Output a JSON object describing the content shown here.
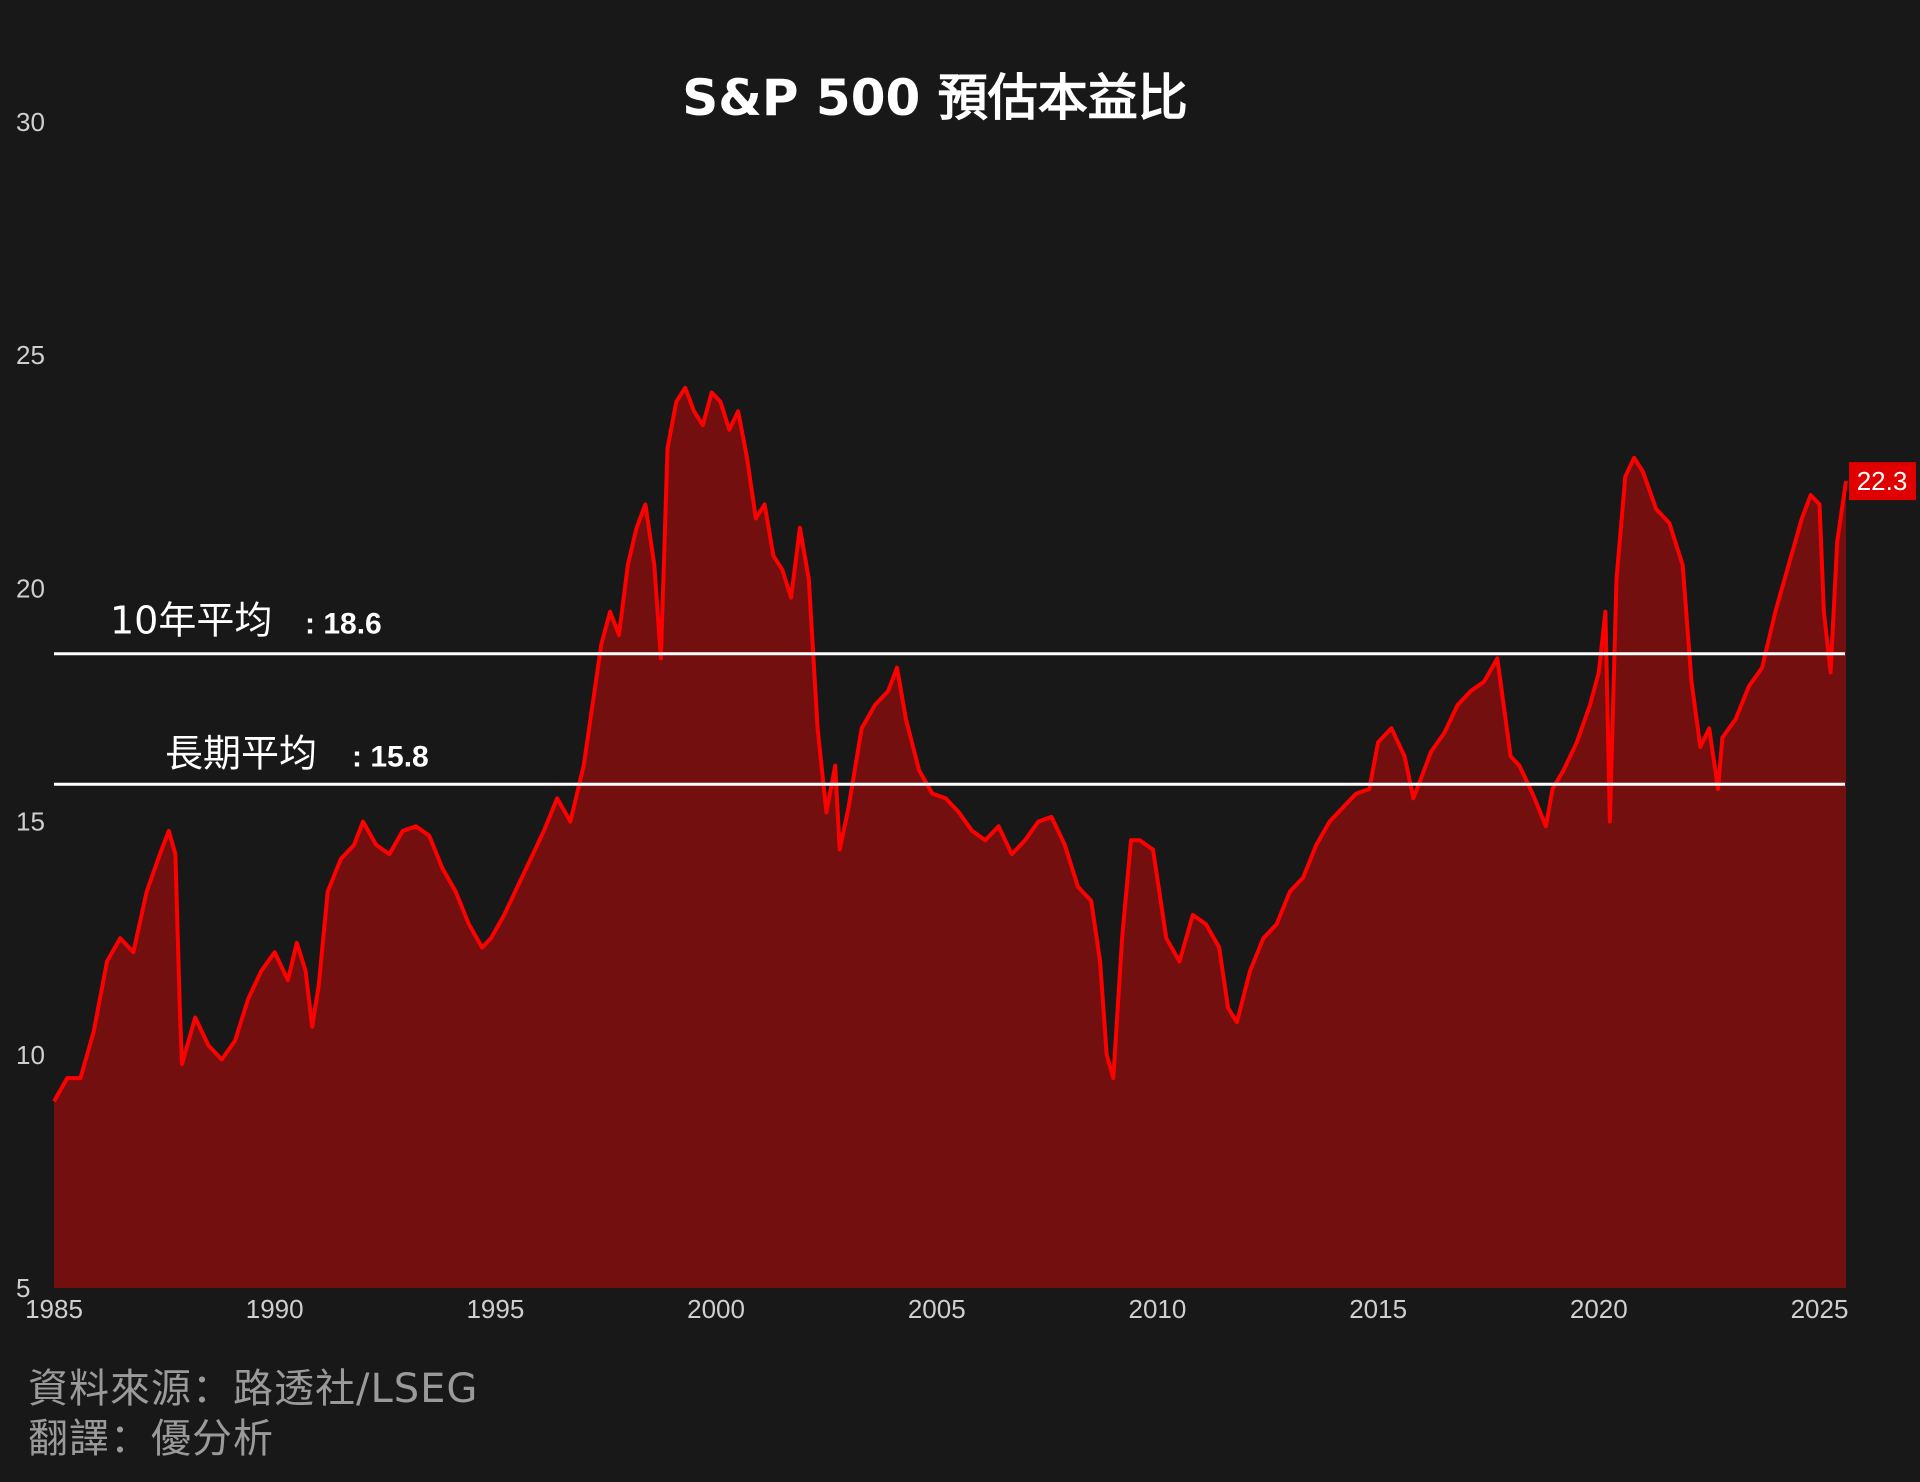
{
  "chart_data": {
    "type": "area",
    "title": "S&P 500 預估本益比",
    "xlabel": "",
    "ylabel": "",
    "ylim": [
      5,
      30
    ],
    "xlim": [
      1985.0,
      2025.6
    ],
    "yticks": [
      "5",
      "10",
      "15",
      "20",
      "25",
      "30"
    ],
    "xticks": [
      "1985",
      "1990",
      "1995",
      "2000",
      "2005",
      "2010",
      "2015",
      "2020",
      "2025"
    ],
    "grid": false,
    "colors": {
      "line": "#ff0000",
      "fill": "#730f0f",
      "reference": "#ffffff",
      "background": "#181818",
      "badge": "#e00000"
    },
    "reference_lines": [
      {
        "label": "10年平均",
        "value_label": ": 18.6",
        "value": 18.6
      },
      {
        "label": "長期平均",
        "value_label": ": 15.8",
        "value": 15.8
      }
    ],
    "last_value_label": "22.3",
    "series": [
      {
        "x": [
          1985.0,
          1985.3,
          1985.6,
          1985.9,
          1986.2,
          1986.5,
          1986.8,
          1987.1,
          1987.4,
          1987.6,
          1987.75,
          1987.85,
          1987.9,
          1988.2,
          1988.5,
          1988.8,
          1989.1,
          1989.4,
          1989.7,
          1990.0,
          1990.3,
          1990.5,
          1990.7,
          1990.85,
          1991.0,
          1991.2,
          1991.5,
          1991.8,
          1992.0,
          1992.3,
          1992.6,
          1992.9,
          1993.2,
          1993.5,
          1993.8,
          1994.1,
          1994.4,
          1994.7,
          1994.9,
          1995.2,
          1995.5,
          1995.8,
          1996.1,
          1996.4,
          1996.7,
          1997.0,
          1997.2,
          1997.4,
          1997.6,
          1997.8,
          1998.0,
          1998.2,
          1998.4,
          1998.6,
          1998.75,
          1998.9,
          1999.1,
          1999.3,
          1999.5,
          1999.7,
          1999.9,
          2000.1,
          2000.3,
          2000.5,
          2000.7,
          2000.9,
          2001.1,
          2001.3,
          2001.5,
          2001.7,
          2001.9,
          2002.1,
          2002.3,
          2002.5,
          2002.7,
          2002.8,
          2003.0,
          2003.3,
          2003.6,
          2003.9,
          2004.1,
          2004.3,
          2004.6,
          2004.9,
          2005.2,
          2005.5,
          2005.8,
          2006.1,
          2006.4,
          2006.7,
          2007.0,
          2007.3,
          2007.6,
          2007.9,
          2008.2,
          2008.5,
          2008.7,
          2008.85,
          2009.0,
          2009.2,
          2009.4,
          2009.6,
          2009.9,
          2010.2,
          2010.5,
          2010.8,
          2011.1,
          2011.4,
          2011.6,
          2011.8,
          2012.1,
          2012.4,
          2012.7,
          2013.0,
          2013.3,
          2013.6,
          2013.9,
          2014.2,
          2014.5,
          2014.8,
          2015.0,
          2015.3,
          2015.6,
          2015.8,
          2016.0,
          2016.2,
          2016.5,
          2016.8,
          2017.1,
          2017.4,
          2017.7,
          2018.0,
          2018.2,
          2018.5,
          2018.8,
          2018.95,
          2019.2,
          2019.5,
          2019.8,
          2020.0,
          2020.15,
          2020.25,
          2020.4,
          2020.6,
          2020.8,
          2021.0,
          2021.3,
          2021.6,
          2021.9,
          2022.1,
          2022.3,
          2022.5,
          2022.7,
          2022.8,
          2023.1,
          2023.4,
          2023.7,
          2024.0,
          2024.3,
          2024.6,
          2024.8,
          2025.0,
          2025.1,
          2025.25,
          2025.4,
          2025.6
        ],
        "y": [
          9.0,
          9.5,
          9.5,
          10.5,
          12.0,
          12.5,
          12.2,
          13.5,
          14.3,
          14.8,
          14.3,
          11.0,
          9.8,
          10.8,
          10.2,
          9.9,
          10.3,
          11.2,
          11.8,
          12.2,
          11.6,
          12.4,
          11.8,
          10.6,
          11.5,
          13.5,
          14.2,
          14.5,
          15.0,
          14.5,
          14.3,
          14.8,
          14.9,
          14.7,
          14.0,
          13.5,
          12.8,
          12.3,
          12.5,
          13.0,
          13.6,
          14.2,
          14.8,
          15.5,
          15.0,
          16.2,
          17.5,
          18.8,
          19.5,
          19.0,
          20.5,
          21.3,
          21.8,
          20.5,
          18.5,
          23.0,
          24.0,
          24.3,
          23.8,
          23.5,
          24.2,
          24.0,
          23.4,
          23.8,
          22.8,
          21.5,
          21.8,
          20.7,
          20.4,
          19.8,
          21.3,
          20.2,
          17.0,
          15.2,
          16.2,
          14.4,
          15.3,
          17.0,
          17.5,
          17.8,
          18.3,
          17.2,
          16.1,
          15.6,
          15.5,
          15.2,
          14.8,
          14.6,
          14.9,
          14.3,
          14.6,
          15.0,
          15.1,
          14.5,
          13.6,
          13.3,
          12.0,
          10.0,
          9.5,
          12.5,
          14.6,
          14.6,
          14.4,
          12.5,
          12.0,
          13.0,
          12.8,
          12.3,
          11.0,
          10.7,
          11.8,
          12.5,
          12.8,
          13.5,
          13.8,
          14.5,
          15.0,
          15.3,
          15.6,
          15.7,
          16.7,
          17.0,
          16.4,
          15.5,
          16.0,
          16.5,
          16.9,
          17.5,
          17.8,
          18.0,
          18.5,
          16.4,
          16.2,
          15.6,
          14.9,
          15.7,
          16.1,
          16.7,
          17.5,
          18.2,
          19.5,
          15.0,
          20.2,
          22.4,
          22.8,
          22.5,
          21.7,
          21.4,
          20.5,
          18.0,
          16.6,
          17.0,
          15.7,
          16.8,
          17.2,
          17.9,
          18.3,
          19.5,
          20.5,
          21.5,
          22.0,
          21.8,
          19.5,
          18.2,
          21.0,
          22.3
        ]
      }
    ]
  },
  "footer": {
    "source": "資料來源：路透社/LSEG",
    "translation": "翻譯：優分析"
  }
}
